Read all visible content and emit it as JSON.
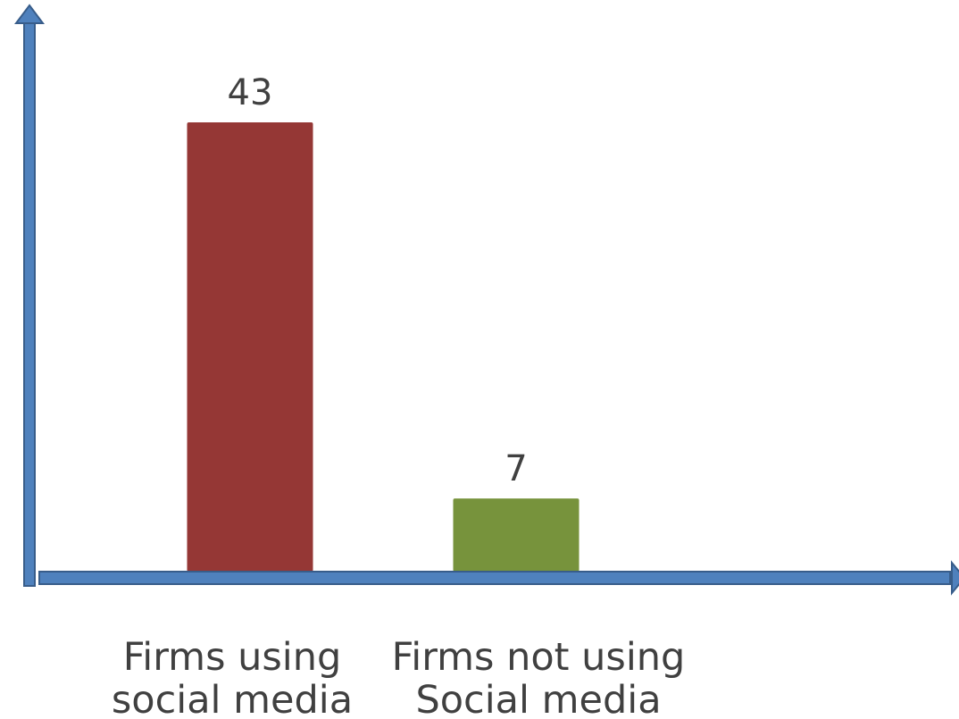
{
  "chart_data": {
    "type": "bar",
    "categories": [
      "Firms using social media",
      "Firms not using Social media"
    ],
    "values": [
      43,
      7
    ],
    "colors": [
      "#953735",
      "#77933c"
    ],
    "ylim": [
      0,
      53
    ]
  }
}
